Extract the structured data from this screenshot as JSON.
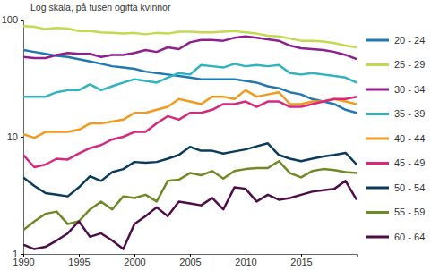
{
  "chart_data": {
    "type": "line",
    "title": "Log skala, på tusen ogifta kvinnor",
    "log": "y",
    "legend": "right",
    "grid": false,
    "x": [
      1990,
      1991,
      1992,
      1993,
      1994,
      1995,
      1996,
      1997,
      1998,
      1999,
      2000,
      2001,
      2002,
      2003,
      2004,
      2005,
      2006,
      2007,
      2008,
      2009,
      2010,
      2011,
      2012,
      2013,
      2014,
      2015,
      2016,
      2017,
      2018,
      2019,
      2020
    ],
    "xlim": [
      1990,
      2020
    ],
    "xticks": [
      1990,
      1995,
      2000,
      2005,
      2010,
      2015
    ],
    "ylim": [
      1,
      100
    ],
    "yticks": [
      1,
      10,
      100
    ],
    "series": [
      {
        "name": "20 - 24",
        "color": "#1f77b4",
        "values": [
          55,
          53,
          51,
          49,
          48,
          46,
          44,
          42,
          40,
          39,
          38,
          36,
          35,
          34,
          33,
          32,
          31,
          31,
          31,
          31,
          30,
          29,
          27,
          26,
          24,
          23,
          21,
          20,
          19,
          17,
          16
        ]
      },
      {
        "name": "25 - 29",
        "color": "#c5d94e",
        "values": [
          88,
          87,
          83,
          85,
          84,
          80,
          80,
          78,
          77,
          76,
          77,
          75,
          77,
          76,
          79,
          79,
          78,
          78,
          79,
          80,
          78,
          76,
          73,
          72,
          69,
          66,
          66,
          65,
          63,
          60,
          58
        ]
      },
      {
        "name": "30 - 34",
        "color": "#8e1f8e",
        "values": [
          48,
          47,
          47,
          50,
          52,
          51,
          51,
          48,
          50,
          50,
          52,
          55,
          53,
          58,
          56,
          64,
          67,
          67,
          66,
          70,
          72,
          70,
          68,
          66,
          60,
          57,
          56,
          55,
          53,
          50,
          46
        ]
      },
      {
        "name": "35 - 39",
        "color": "#2fb3c1",
        "values": [
          22,
          22,
          22,
          24,
          25,
          25,
          28,
          25,
          27,
          29,
          31,
          30,
          29,
          32,
          35,
          34,
          41,
          40,
          39,
          42,
          40,
          41,
          40,
          41,
          35,
          34,
          35,
          34,
          33,
          32,
          29
        ]
      },
      {
        "name": "40 - 44",
        "color": "#f39a1e",
        "values": [
          10.5,
          9.8,
          11,
          11,
          11,
          11.5,
          13,
          13,
          13.5,
          14,
          16,
          16,
          17,
          18,
          21,
          20,
          19,
          22,
          22,
          21,
          25,
          22,
          23,
          24,
          19,
          19,
          20,
          20,
          21,
          20,
          19
        ]
      },
      {
        "name": "45 - 49",
        "color": "#d8287e",
        "values": [
          7,
          5.5,
          5.8,
          6.5,
          6.4,
          7.2,
          8,
          8.5,
          9.5,
          10,
          11,
          11,
          13,
          15,
          14,
          16,
          16,
          17,
          19,
          19,
          20,
          18,
          20,
          20,
          18,
          18,
          19,
          20,
          21,
          21,
          22
        ]
      },
      {
        "name": "50 - 54",
        "color": "#0b3b5c",
        "values": [
          4.5,
          3.8,
          3.3,
          3.2,
          3.1,
          3.7,
          4.6,
          4.2,
          5.0,
          5.3,
          6.1,
          6,
          6.1,
          6.5,
          7,
          8.2,
          7.6,
          7.6,
          7.2,
          7.5,
          7.8,
          8.3,
          8.8,
          7.0,
          6.5,
          6.2,
          6.5,
          6.8,
          7,
          7.3,
          5.8
        ]
      },
      {
        "name": "55 - 59",
        "color": "#6e8a24",
        "values": [
          1.6,
          1.9,
          2.2,
          2.3,
          1.8,
          1.9,
          2.4,
          2.8,
          2.4,
          3.1,
          3.0,
          3.2,
          2.8,
          4.2,
          4.3,
          4.9,
          4.7,
          5.1,
          4.4,
          5.1,
          5.3,
          5.4,
          5.4,
          6.2,
          4.9,
          4.5,
          5.1,
          5.3,
          5.2,
          5.0,
          4.9
        ]
      },
      {
        "name": "60 - 64",
        "color": "#4e0d47",
        "values": [
          1.2,
          1.1,
          1.15,
          1.3,
          1.5,
          1.9,
          1.4,
          1.5,
          1.3,
          1.1,
          1.8,
          2.1,
          2.5,
          2.1,
          2.8,
          2.7,
          2.6,
          3.0,
          2.4,
          3.7,
          3.6,
          2.8,
          3.2,
          2.9,
          3.0,
          3.2,
          3.4,
          3.5,
          3.6,
          4.2,
          2.9
        ]
      }
    ]
  }
}
